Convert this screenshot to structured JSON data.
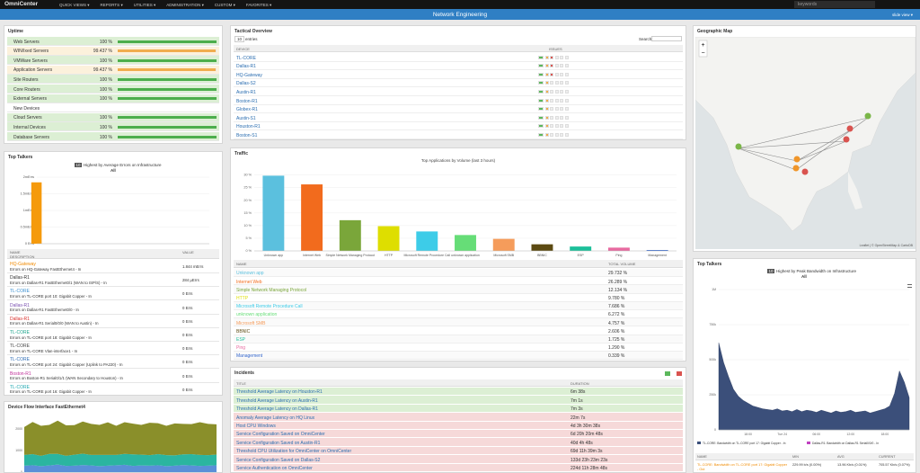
{
  "nav": {
    "logo": "OmniCenter",
    "menu": [
      "QUICK VIEWS ▾",
      "REPORTS ▾",
      "UTILITIES ▾",
      "ADMINISTRATION ▾",
      "CUSTOM ▾",
      "FAVORITES ▾"
    ],
    "search": "keywords"
  },
  "header": {
    "title": "Network Engineering",
    "link": "slide view ▾"
  },
  "uptime": {
    "title": "Uptime",
    "rows": [
      {
        "name": "Web Servers",
        "value": 100,
        "label": "100 %",
        "status": "ok"
      },
      {
        "name": "WIN/Ixed Servers",
        "value": 99.437,
        "label": "99.437 %",
        "status": "warn"
      },
      {
        "name": "VMWare Servers",
        "value": 100,
        "label": "100 %",
        "status": "ok"
      },
      {
        "name": "Application Servers",
        "value": 99.437,
        "label": "99.437 %",
        "status": "warn"
      },
      {
        "name": "Site Routers",
        "value": 100,
        "label": "100 %",
        "status": "ok"
      },
      {
        "name": "Core Routers",
        "value": 100,
        "label": "100 %",
        "status": "ok"
      },
      {
        "name": "External Servers",
        "value": 100,
        "label": "100 %",
        "status": "ok"
      },
      {
        "name": "New Devices",
        "status": "none"
      },
      {
        "name": "Cloud Servers",
        "value": 100,
        "label": "100 %",
        "status": "ok"
      },
      {
        "name": "Internal Devices",
        "value": 100,
        "label": "100 %",
        "status": "ok"
      },
      {
        "name": "Database Servers",
        "value": 100,
        "label": "100 %",
        "status": "ok"
      }
    ]
  },
  "top_talkers_errors": {
    "title": "Top Talkers",
    "count": "10",
    "subtitle": "Highest by Average Errors on Infrastructure",
    "scope": "All",
    "chart_data": {
      "type": "bar",
      "values": [
        1.844
      ],
      "color": "#f59a0c",
      "ylim": [
        0,
        2
      ],
      "yticks": [
        {
          "value": 0,
          "label": "0 Errs"
        },
        {
          "value": 0.5,
          "label": "0.5mErrs"
        },
        {
          "value": 1,
          "label": "1mErrs"
        },
        {
          "value": 1.5,
          "label": "1.5mErrs"
        },
        {
          "value": 2,
          "label": "2mErrs"
        }
      ],
      "grid": true
    },
    "table": {
      "headers": [
        "NAME",
        "VALUE"
      ],
      "subheader": "DESCRIPTION",
      "rows": [
        {
          "name": "HQ-Gateway",
          "color": "#f08a00",
          "description": "Errors on HQ-Gateway FastEthernet4 - In",
          "value": "1.844 mErrs"
        },
        {
          "name": "Dallas-R1",
          "color": "#333333",
          "description": "Errors on Dallas-R1 FastEthernet0/1 (WAN to ISP/S) - In",
          "value": "284 µErrs"
        },
        {
          "name": "TL-CORE",
          "color": "#3a8fd0",
          "description": "Errors on TL-CORE port 10: Gigabit Copper - In",
          "value": "0 Errs"
        },
        {
          "name": "Dallas-R1",
          "color": "#7a4fb0",
          "description": "Errors on Dallas-R1 FastEthernet0/0 - In",
          "value": "0 Errs"
        },
        {
          "name": "Dallas-R1",
          "color": "#d9302c",
          "description": "Errors on Dallas-R1 Serial0/0/0 (WAN to Austin) - In",
          "value": "0 Errs"
        },
        {
          "name": "TL-CORE",
          "color": "#1aa38a",
          "description": "Errors on TL-CORE port 18: Gigabit Copper - In",
          "value": "0 Errs"
        },
        {
          "name": "TL-CORE",
          "color": "#444444",
          "description": "Errors on TL-CORE Vlan-interface1 - In",
          "value": "0 Errs"
        },
        {
          "name": "TL-CORE",
          "color": "#2f6db5",
          "description": "Errors on TL-CORE port 24: Gigabit Copper (Uplink to PA220) - In",
          "value": "0 Errs"
        },
        {
          "name": "Boston-R1",
          "color": "#c0309a",
          "description": "Errors on Boston-R1 Serial0/1/1 (WAN Secondary to Houston) - In",
          "value": "0 Errs"
        },
        {
          "name": "TL-CORE",
          "color": "#20a8b0",
          "description": "Errors on TL-CORE port 16: Gigabit Copper - In",
          "value": "0 Errs"
        }
      ]
    }
  },
  "device_flow": {
    "title": "Device Flow Interface FastEthernet4",
    "chart_data": {
      "type": "stacked-area",
      "ylim": [
        0,
        2600
      ],
      "yticks": [
        0,
        1000,
        2000
      ],
      "series": [
        {
          "name": "blue",
          "color": "#5a8fd8",
          "values": [
            300,
            320,
            280,
            310,
            350,
            290,
            300,
            330,
            310,
            280,
            300,
            320,
            340,
            290,
            310,
            300,
            320,
            280,
            300,
            330,
            310,
            290,
            300,
            320
          ]
        },
        {
          "name": "teal",
          "color": "#2bb5a0",
          "values": [
            500,
            520,
            480,
            540,
            500,
            470,
            510,
            530,
            490,
            520,
            500,
            480,
            510,
            540,
            500,
            490,
            520,
            510,
            480,
            500,
            530,
            510,
            490,
            500
          ]
        },
        {
          "name": "olive",
          "color": "#8a8f2a",
          "values": [
            1300,
            1500,
            1400,
            1350,
            1550,
            1420,
            1380,
            1500,
            1450,
            1400,
            1520,
            1360,
            1480,
            1430,
            1390,
            1510,
            1440,
            1370,
            1490,
            1420,
            1400,
            1530,
            1460,
            1410
          ]
        }
      ]
    }
  },
  "tactical": {
    "title": "Tactical Overview",
    "length": "10",
    "entries": "entries",
    "search": "Search:",
    "headers": [
      "DEVICE",
      "ISSUES"
    ],
    "rows": [
      "TL-CORE",
      "Dallas-R1",
      "HQ-Gateway",
      "Dallas-S2",
      "Austin-R1",
      "Boston-R1",
      "Globex-R1",
      "Austin-S1",
      "Houston-R1",
      "Boston-S1"
    ]
  },
  "traffic": {
    "title": "Traffic",
    "chart_data": {
      "type": "bar",
      "title": "Top Applications by Volume (last 3 hours)",
      "categories": [
        "Unknown app",
        "Internet Web",
        "Simple Network Managing Protocol",
        "HTTP",
        "Microsoft Remote Procedure Call",
        "unknown application",
        "Microsoft SMB",
        "BBNIC",
        "ESP",
        "Ping",
        "Management"
      ],
      "values": [
        29.732,
        26.289,
        12.134,
        9.78,
        7.686,
        6.272,
        4.757,
        2.606,
        1.725,
        1.29,
        0.339
      ],
      "value_labels": [
        "29.732 %",
        "26.289 %",
        "12.134 %",
        "9.780 %",
        "7.686 %",
        "6.272 %",
        "4.757 %",
        "2.606 %",
        "1.725 %",
        "1.290 %",
        "0.339 %"
      ],
      "colors": [
        "#5bc0de",
        "#f26b1d",
        "#7aa63a",
        "#dede00",
        "#3dcce8",
        "#66dd77",
        "#f59c5b",
        "#5c4a12",
        "#1cbf9a",
        "#e86aa0",
        "#3366cc"
      ],
      "ylim": [
        0,
        32
      ],
      "yticks": [
        {
          "value": 0,
          "label": "0 %"
        },
        {
          "value": 5,
          "label": "5 %"
        },
        {
          "value": 10,
          "label": "10 %"
        },
        {
          "value": 15,
          "label": "15 %"
        },
        {
          "value": 20,
          "label": "20 %"
        },
        {
          "value": 25,
          "label": "25 %"
        },
        {
          "value": 30,
          "label": "30 %"
        }
      ],
      "grid": true
    },
    "table_headers": [
      "NAME",
      "TOTAL VOLUME"
    ]
  },
  "incidents": {
    "title": "Incidents",
    "headers": [
      "TITLE",
      "DURATION"
    ],
    "rows": [
      {
        "title": "Threshold Average Latency on Houston-R1",
        "duration": "6m 38s",
        "severity": "ok"
      },
      {
        "title": "Threshold Average Latency on Austin-R1",
        "duration": "7m 1s",
        "severity": "ok"
      },
      {
        "title": "Threshold Average Latency on Dallas-R1",
        "duration": "7m 3s",
        "severity": "ok"
      },
      {
        "title": "Anomaly Average Latency on HQ Linux",
        "duration": "22m 7s",
        "severity": "bad"
      },
      {
        "title": "Host CPU Windows",
        "duration": "4d 3h 30m 38s",
        "severity": "bad"
      },
      {
        "title": "Service Configuration Saved on OmniCenter",
        "duration": "6d 20h 20m 48s",
        "severity": "bad"
      },
      {
        "title": "Service Configuration Saved on Austin-R1",
        "duration": "40d 4h 48s",
        "severity": "bad"
      },
      {
        "title": "Threshold CPU Utilization for OmniCenter on OmniCenter",
        "duration": "69d 11h 39m 3s",
        "severity": "bad"
      },
      {
        "title": "Service Configuration Saved on Dallas-S2",
        "duration": "133d 23h 23m 23s",
        "severity": "bad"
      },
      {
        "title": "Service Authentication on OmniCenter",
        "duration": "224d 11h 28m 48s",
        "severity": "bad"
      }
    ]
  },
  "map": {
    "title": "Geographic Map",
    "zoom": [
      "+",
      "−"
    ],
    "attribution": "Leaflet | © OpenStreetMap & CartoDB"
  },
  "top_talkers_bandwidth": {
    "title": "Top Talkers",
    "count": "10",
    "subtitle": "Highest by Peak Bandwidth on Infrastructure",
    "scope": "All",
    "chart_data": {
      "type": "area",
      "color": "#3b4f7a",
      "categories": [
        null,
        null,
        null,
        null,
        null,
        null,
        "18:00",
        null,
        null,
        null,
        null,
        null,
        null,
        "Tue 24",
        null,
        null,
        null,
        null,
        null,
        null,
        "06:00",
        null,
        null,
        null,
        null,
        null,
        null,
        "12:00",
        null,
        null,
        null,
        null,
        null,
        null,
        "18:00",
        null,
        null,
        null,
        null,
        null
      ],
      "values": [
        620,
        480,
        380,
        290,
        240,
        210,
        190,
        170,
        160,
        150,
        145,
        140,
        150,
        135,
        140,
        130,
        145,
        130,
        140,
        135,
        125,
        140,
        130,
        120,
        135,
        125,
        130,
        140,
        125,
        130,
        135,
        120,
        130,
        140,
        150,
        170,
        260,
        420,
        340,
        230
      ],
      "ylim": [
        0,
        1000
      ],
      "yticks": [
        {
          "value": 0,
          "label": "0"
        },
        {
          "value": 250,
          "label": "250k"
        },
        {
          "value": 500,
          "label": "500k"
        },
        {
          "value": 750,
          "label": "750k"
        },
        {
          "value": 1000,
          "label": "1M"
        }
      ]
    },
    "legend": [
      "TL-CORE: Bandwidth on TL-CORE port 17: Gigabit Copper - In",
      "Dallas-R1: Bandwidth on Dallas-R1 Serial0/0/0 - In"
    ],
    "table": {
      "headers": [
        "NAME",
        "MIN",
        "AVG",
        "CURRENT"
      ],
      "row": [
        "TL-CORE: Bandwidth on TL-CORE port 17: Gigabit Copper - Out",
        "229.99 b/s (0.00%)",
        "13.96 Kb/s (0.01%)",
        "705.57 Kb/s (0.07%)"
      ]
    }
  }
}
